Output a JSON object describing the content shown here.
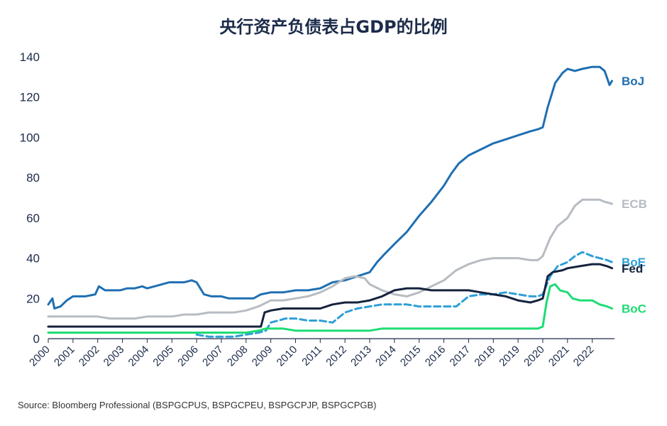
{
  "title": "央行资产负债表占GDP的比例",
  "source": "Source: Bloomberg Professional (BSPGCPUS, BSPGCPEU, BSPGCPJP, BSPGCPGB)",
  "chart_data": {
    "type": "line",
    "title": "央行资产负债表占GDP的比例",
    "xlabel": "",
    "ylabel": "",
    "xlim": [
      2000,
      2022.9
    ],
    "ylim": [
      0,
      140
    ],
    "y_ticks": [
      0,
      20,
      40,
      60,
      80,
      100,
      120,
      140
    ],
    "x_ticks": [
      "2000",
      "2001",
      "2002",
      "2003",
      "2004",
      "2005",
      "2006",
      "2007",
      "2008",
      "2009",
      "2010",
      "2011",
      "2012",
      "2013",
      "2014",
      "2015",
      "2016",
      "2017",
      "2018",
      "2019",
      "2020",
      "2021",
      "2022"
    ],
    "grid": false,
    "legend": "inline labels at right end",
    "series": [
      {
        "name": "BoJ",
        "color": "#1f6fb2",
        "dash": false,
        "points": [
          [
            2000,
            17
          ],
          [
            2000.17,
            20
          ],
          [
            2000.25,
            15
          ],
          [
            2000.5,
            16
          ],
          [
            2000.75,
            19
          ],
          [
            2001,
            21
          ],
          [
            2001.5,
            21
          ],
          [
            2001.9,
            22
          ],
          [
            2002.05,
            26
          ],
          [
            2002.3,
            24
          ],
          [
            2002.6,
            24
          ],
          [
            2002.9,
            24
          ],
          [
            2003.2,
            25
          ],
          [
            2003.5,
            25
          ],
          [
            2003.8,
            26
          ],
          [
            2004,
            25
          ],
          [
            2004.3,
            26
          ],
          [
            2004.6,
            27
          ],
          [
            2004.9,
            28
          ],
          [
            2005.2,
            28
          ],
          [
            2005.5,
            28
          ],
          [
            2005.8,
            29
          ],
          [
            2006,
            28
          ],
          [
            2006.3,
            22
          ],
          [
            2006.6,
            21
          ],
          [
            2007,
            21
          ],
          [
            2007.3,
            20
          ],
          [
            2007.6,
            20
          ],
          [
            2008,
            20
          ],
          [
            2008.3,
            20
          ],
          [
            2008.6,
            22
          ],
          [
            2009,
            23
          ],
          [
            2009.5,
            23
          ],
          [
            2010,
            24
          ],
          [
            2010.5,
            24
          ],
          [
            2011,
            25
          ],
          [
            2011.5,
            28
          ],
          [
            2012,
            29
          ],
          [
            2012.5,
            31
          ],
          [
            2013,
            33
          ],
          [
            2013.3,
            38
          ],
          [
            2013.6,
            42
          ],
          [
            2014,
            47
          ],
          [
            2014.5,
            53
          ],
          [
            2015,
            61
          ],
          [
            2015.5,
            68
          ],
          [
            2016,
            76
          ],
          [
            2016.3,
            82
          ],
          [
            2016.6,
            87
          ],
          [
            2017,
            91
          ],
          [
            2017.5,
            94
          ],
          [
            2018,
            97
          ],
          [
            2018.5,
            99
          ],
          [
            2019,
            101
          ],
          [
            2019.5,
            103
          ],
          [
            2019.8,
            104
          ],
          [
            2020,
            105
          ],
          [
            2020.2,
            115
          ],
          [
            2020.5,
            127
          ],
          [
            2020.8,
            132
          ],
          [
            2021,
            134
          ],
          [
            2021.3,
            133
          ],
          [
            2021.6,
            134
          ],
          [
            2022,
            135
          ],
          [
            2022.3,
            135
          ],
          [
            2022.5,
            133
          ],
          [
            2022.7,
            126
          ],
          [
            2022.8,
            128
          ]
        ]
      },
      {
        "name": "ECB",
        "color": "#b7bcc2",
        "dash": false,
        "points": [
          [
            2000,
            11
          ],
          [
            2000.5,
            11
          ],
          [
            2001,
            11
          ],
          [
            2001.5,
            11
          ],
          [
            2002,
            11
          ],
          [
            2002.5,
            10
          ],
          [
            2003,
            10
          ],
          [
            2003.5,
            10
          ],
          [
            2004,
            11
          ],
          [
            2004.5,
            11
          ],
          [
            2005,
            11
          ],
          [
            2005.5,
            12
          ],
          [
            2006,
            12
          ],
          [
            2006.5,
            13
          ],
          [
            2007,
            13
          ],
          [
            2007.5,
            13
          ],
          [
            2008,
            14
          ],
          [
            2008.5,
            16
          ],
          [
            2009,
            19
          ],
          [
            2009.5,
            19
          ],
          [
            2010,
            20
          ],
          [
            2010.5,
            21
          ],
          [
            2011,
            23
          ],
          [
            2011.5,
            26
          ],
          [
            2012,
            30
          ],
          [
            2012.4,
            31
          ],
          [
            2012.8,
            30
          ],
          [
            2013,
            27
          ],
          [
            2013.5,
            24
          ],
          [
            2014,
            22
          ],
          [
            2014.5,
            21
          ],
          [
            2015,
            23
          ],
          [
            2015.5,
            26
          ],
          [
            2016,
            29
          ],
          [
            2016.5,
            34
          ],
          [
            2017,
            37
          ],
          [
            2017.5,
            39
          ],
          [
            2018,
            40
          ],
          [
            2018.5,
            40
          ],
          [
            2019,
            40
          ],
          [
            2019.5,
            39
          ],
          [
            2019.8,
            39
          ],
          [
            2020,
            41
          ],
          [
            2020.3,
            50
          ],
          [
            2020.6,
            56
          ],
          [
            2021,
            60
          ],
          [
            2021.3,
            66
          ],
          [
            2021.6,
            69
          ],
          [
            2022,
            69
          ],
          [
            2022.3,
            69
          ],
          [
            2022.5,
            68
          ],
          [
            2022.8,
            67
          ]
        ]
      },
      {
        "name": "BoE",
        "color": "#2e9fd8",
        "dash": true,
        "points": [
          [
            2006,
            2
          ],
          [
            2006.5,
            1
          ],
          [
            2007,
            1
          ],
          [
            2007.5,
            1
          ],
          [
            2008,
            2
          ],
          [
            2008.5,
            3
          ],
          [
            2008.8,
            4
          ],
          [
            2009,
            8
          ],
          [
            2009.3,
            9
          ],
          [
            2009.6,
            10
          ],
          [
            2010,
            10
          ],
          [
            2010.5,
            9
          ],
          [
            2011,
            9
          ],
          [
            2011.5,
            8
          ],
          [
            2012,
            13
          ],
          [
            2012.5,
            15
          ],
          [
            2013,
            16
          ],
          [
            2013.5,
            17
          ],
          [
            2014,
            17
          ],
          [
            2014.5,
            17
          ],
          [
            2015,
            16
          ],
          [
            2015.5,
            16
          ],
          [
            2016,
            16
          ],
          [
            2016.5,
            16
          ],
          [
            2016.8,
            19
          ],
          [
            2017,
            21
          ],
          [
            2017.5,
            22
          ],
          [
            2018,
            22
          ],
          [
            2018.5,
            23
          ],
          [
            2019,
            22
          ],
          [
            2019.5,
            21
          ],
          [
            2019.8,
            21
          ],
          [
            2020,
            22
          ],
          [
            2020.3,
            31
          ],
          [
            2020.6,
            36
          ],
          [
            2021,
            38
          ],
          [
            2021.3,
            41
          ],
          [
            2021.6,
            43
          ],
          [
            2022,
            41
          ],
          [
            2022.3,
            40
          ],
          [
            2022.6,
            39
          ],
          [
            2022.8,
            38
          ]
        ]
      },
      {
        "name": "Fed",
        "color": "#15233e",
        "dash": false,
        "points": [
          [
            2000,
            6
          ],
          [
            2001,
            6
          ],
          [
            2002,
            6
          ],
          [
            2003,
            6
          ],
          [
            2004,
            6
          ],
          [
            2005,
            6
          ],
          [
            2006,
            6
          ],
          [
            2007,
            6
          ],
          [
            2008,
            6
          ],
          [
            2008.6,
            6
          ],
          [
            2008.75,
            13
          ],
          [
            2009,
            14
          ],
          [
            2009.5,
            15
          ],
          [
            2010,
            15
          ],
          [
            2010.5,
            15
          ],
          [
            2011,
            15
          ],
          [
            2011.5,
            17
          ],
          [
            2012,
            18
          ],
          [
            2012.5,
            18
          ],
          [
            2013,
            19
          ],
          [
            2013.5,
            21
          ],
          [
            2014,
            24
          ],
          [
            2014.5,
            25
          ],
          [
            2015,
            25
          ],
          [
            2015.5,
            24
          ],
          [
            2016,
            24
          ],
          [
            2016.5,
            24
          ],
          [
            2017,
            24
          ],
          [
            2017.5,
            23
          ],
          [
            2018,
            22
          ],
          [
            2018.5,
            21
          ],
          [
            2019,
            19
          ],
          [
            2019.5,
            18
          ],
          [
            2019.8,
            19
          ],
          [
            2020,
            20
          ],
          [
            2020.2,
            31
          ],
          [
            2020.4,
            33
          ],
          [
            2020.8,
            34
          ],
          [
            2021,
            35
          ],
          [
            2021.5,
            36
          ],
          [
            2022,
            37
          ],
          [
            2022.3,
            37
          ],
          [
            2022.6,
            36
          ],
          [
            2022.8,
            35
          ]
        ]
      },
      {
        "name": "BoC",
        "color": "#1edc74",
        "dash": false,
        "points": [
          [
            2000,
            3
          ],
          [
            2001,
            3
          ],
          [
            2002,
            3
          ],
          [
            2003,
            3
          ],
          [
            2004,
            3
          ],
          [
            2005,
            3
          ],
          [
            2006,
            3
          ],
          [
            2007,
            3
          ],
          [
            2008,
            3
          ],
          [
            2008.5,
            4
          ],
          [
            2008.8,
            5
          ],
          [
            2009,
            5
          ],
          [
            2009.5,
            5
          ],
          [
            2010,
            4
          ],
          [
            2010.5,
            4
          ],
          [
            2011,
            4
          ],
          [
            2011.5,
            4
          ],
          [
            2012,
            4
          ],
          [
            2012.5,
            4
          ],
          [
            2013,
            4
          ],
          [
            2013.5,
            5
          ],
          [
            2014,
            5
          ],
          [
            2015,
            5
          ],
          [
            2016,
            5
          ],
          [
            2017,
            5
          ],
          [
            2018,
            5
          ],
          [
            2019,
            5
          ],
          [
            2019.8,
            5
          ],
          [
            2020,
            6
          ],
          [
            2020.15,
            18
          ],
          [
            2020.3,
            26
          ],
          [
            2020.5,
            27
          ],
          [
            2020.7,
            24
          ],
          [
            2021,
            23
          ],
          [
            2021.2,
            20
          ],
          [
            2021.5,
            19
          ],
          [
            2022,
            19
          ],
          [
            2022.3,
            17
          ],
          [
            2022.6,
            16
          ],
          [
            2022.8,
            15
          ]
        ]
      }
    ]
  }
}
